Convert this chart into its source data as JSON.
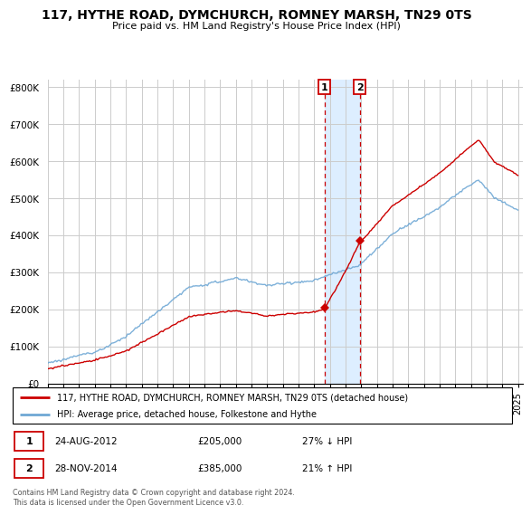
{
  "title": "117, HYTHE ROAD, DYMCHURCH, ROMNEY MARSH, TN29 0TS",
  "subtitle": "Price paid vs. HM Land Registry's House Price Index (HPI)",
  "ylabel_ticks": [
    "£0",
    "£100K",
    "£200K",
    "£300K",
    "£400K",
    "£500K",
    "£600K",
    "£700K",
    "£800K"
  ],
  "ytick_values": [
    0,
    100000,
    200000,
    300000,
    400000,
    500000,
    600000,
    700000,
    800000
  ],
  "ylim": [
    0,
    820000
  ],
  "sale1": {
    "date_num": 2012.65,
    "price": 205000,
    "label": "1",
    "date_str": "24-AUG-2012",
    "pct": "27%",
    "dir": "↓"
  },
  "sale2": {
    "date_num": 2014.91,
    "price": 385000,
    "label": "2",
    "date_str": "28-NOV-2014",
    "pct": "21%",
    "dir": "↑"
  },
  "hpi_color": "#6fa8d5",
  "price_color": "#cc0000",
  "marker_color": "#cc0000",
  "bg_highlight_color": "#ddeeff",
  "grid_color": "#cccccc",
  "footer_text": "Contains HM Land Registry data © Crown copyright and database right 2024.\nThis data is licensed under the Open Government Licence v3.0.",
  "legend_line1": "117, HYTHE ROAD, DYMCHURCH, ROMNEY MARSH, TN29 0TS (detached house)",
  "legend_line2": "HPI: Average price, detached house, Folkestone and Hythe"
}
